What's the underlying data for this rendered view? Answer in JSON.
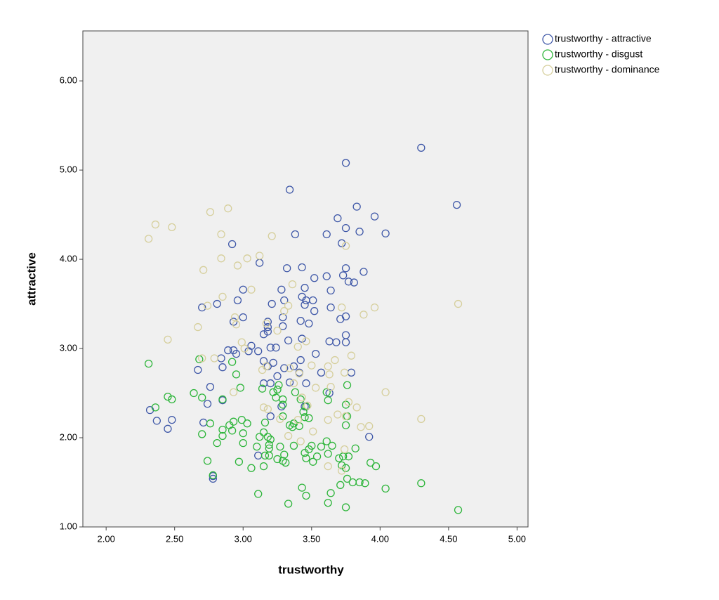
{
  "chart_data": {
    "type": "scatter",
    "x_label": "trustworthy",
    "y_label": "attractive",
    "xlim": [
      1.83,
      5.08
    ],
    "ylim": [
      1.0,
      6.56
    ],
    "xticks": [
      {
        "value": 2,
        "label": "2.00"
      },
      {
        "value": 2.5,
        "label": "2.50"
      },
      {
        "value": 3,
        "label": "3.00"
      },
      {
        "value": 3.5,
        "label": "3.50"
      },
      {
        "value": 4,
        "label": "4.00"
      },
      {
        "value": 4.5,
        "label": "4.50"
      },
      {
        "value": 5,
        "label": "5.00"
      }
    ],
    "yticks": [
      {
        "value": 1,
        "label": "1.00"
      },
      {
        "value": 2,
        "label": "2.00"
      },
      {
        "value": 3,
        "label": "3.00"
      },
      {
        "value": 4,
        "label": "4.00"
      },
      {
        "value": 5,
        "label": "5.00"
      },
      {
        "value": 6,
        "label": "6.00"
      }
    ],
    "grid": false,
    "legend": "outside-top-right",
    "series": [
      {
        "name": "trustworthy - attractive",
        "color": "#3f58a8",
        "x": [
          4.3,
          3.75,
          4.56,
          3.34,
          3.83,
          3.96,
          3.69,
          3.75,
          3.61,
          3.38,
          3.85,
          4.04,
          2.92,
          3.72,
          3.12,
          3.32,
          3.43,
          3.75,
          3.88,
          3.52,
          3.61,
          3.73,
          3.77,
          3.81,
          3.0,
          3.28,
          3.45,
          3.64,
          2.96,
          3.3,
          3.43,
          3.46,
          3.51,
          2.7,
          2.81,
          3.21,
          3.45,
          3.64,
          3.52,
          3.0,
          3.29,
          3.71,
          3.75,
          2.93,
          3.18,
          3.42,
          3.48,
          3.18,
          3.29,
          3.15,
          3.75,
          3.18,
          3.75,
          3.33,
          3.43,
          3.63,
          3.68,
          3.06,
          3.24,
          2.89,
          2.93,
          2.95,
          3.04,
          3.11,
          3.2,
          3.53,
          2.84,
          3.15,
          3.42,
          3.22,
          2.85,
          2.67,
          3.18,
          3.3,
          3.37,
          3.41,
          3.57,
          3.79,
          3.25,
          3.15,
          3.2,
          3.34,
          3.46,
          2.76,
          3.63,
          3.28,
          2.74,
          3.45,
          2.85,
          2.32,
          3.2,
          2.37,
          2.48,
          2.45,
          2.71,
          3.92,
          3.11,
          2.78,
          2.78
        ],
        "y": [
          5.25,
          5.08,
          4.61,
          4.78,
          4.59,
          4.48,
          4.46,
          4.35,
          4.28,
          4.28,
          4.31,
          4.29,
          4.17,
          4.18,
          3.96,
          3.9,
          3.91,
          3.9,
          3.86,
          3.79,
          3.81,
          3.82,
          3.75,
          3.74,
          3.66,
          3.66,
          3.68,
          3.65,
          3.54,
          3.54,
          3.58,
          3.54,
          3.54,
          3.46,
          3.5,
          3.5,
          3.49,
          3.46,
          3.42,
          3.35,
          3.35,
          3.33,
          3.36,
          3.3,
          3.3,
          3.31,
          3.28,
          3.24,
          3.25,
          3.16,
          3.15,
          3.19,
          3.07,
          3.09,
          3.11,
          3.08,
          3.07,
          3.03,
          3.01,
          2.98,
          2.98,
          2.94,
          2.97,
          2.97,
          3.01,
          2.94,
          2.89,
          2.86,
          2.87,
          2.84,
          2.79,
          2.76,
          2.8,
          2.78,
          2.8,
          2.73,
          2.73,
          2.73,
          2.69,
          2.61,
          2.61,
          2.62,
          2.61,
          2.57,
          2.5,
          2.35,
          2.38,
          2.35,
          2.42,
          2.31,
          2.24,
          2.19,
          2.2,
          2.1,
          2.17,
          2.01,
          1.8,
          1.57,
          1.54
        ]
      },
      {
        "name": "trustworthy - disgust",
        "color": "#2db53a",
        "x": [
          2.31,
          2.68,
          2.92,
          2.95,
          2.7,
          2.45,
          2.48,
          2.36,
          2.64,
          2.85,
          2.98,
          3.14,
          3.25,
          3.26,
          3.22,
          3.24,
          3.29,
          3.29,
          3.38,
          3.61,
          3.76,
          3.62,
          3.42,
          3.46,
          3.44,
          3.45,
          3.48,
          3.37,
          3.34,
          3.36,
          3.29,
          3.41,
          3.16,
          2.93,
          2.99,
          3.03,
          2.9,
          2.76,
          2.7,
          2.85,
          2.85,
          2.92,
          3.0,
          3.0,
          3.12,
          3.15,
          3.18,
          3.2,
          3.19,
          3.19,
          3.1,
          2.81,
          3.27,
          3.37,
          3.48,
          3.5,
          3.57,
          3.65,
          3.61,
          3.82,
          3.7,
          3.73,
          3.77,
          3.93,
          3.97,
          3.75,
          3.72,
          3.54,
          3.51,
          3.62,
          3.45,
          3.46,
          3.3,
          3.29,
          3.25,
          3.31,
          3.19,
          3.16,
          3.15,
          3.06,
          2.97,
          2.74,
          2.78,
          3.76,
          3.71,
          3.8,
          3.85,
          3.89,
          4.04,
          4.3,
          3.43,
          3.46,
          3.64,
          3.11,
          3.33,
          3.62,
          3.75,
          4.57,
          3.75,
          3.75,
          3.76
        ],
        "y": [
          2.83,
          2.88,
          2.85,
          2.71,
          2.45,
          2.46,
          2.43,
          2.34,
          2.5,
          2.43,
          2.56,
          2.55,
          2.54,
          2.59,
          2.51,
          2.45,
          2.43,
          2.37,
          2.51,
          2.51,
          2.59,
          2.42,
          2.43,
          2.35,
          2.29,
          2.23,
          2.22,
          2.16,
          2.14,
          2.12,
          2.24,
          2.13,
          2.17,
          2.18,
          2.2,
          2.16,
          2.14,
          2.16,
          2.04,
          2.09,
          2.02,
          2.08,
          2.05,
          1.94,
          2.01,
          2.06,
          2.01,
          1.98,
          1.92,
          1.88,
          1.9,
          1.94,
          1.9,
          1.91,
          1.87,
          1.91,
          1.9,
          1.91,
          1.96,
          1.88,
          1.77,
          1.79,
          1.79,
          1.72,
          1.68,
          1.66,
          1.69,
          1.79,
          1.73,
          1.82,
          1.83,
          1.77,
          1.81,
          1.74,
          1.76,
          1.72,
          1.8,
          1.8,
          1.68,
          1.66,
          1.73,
          1.74,
          1.58,
          1.54,
          1.47,
          1.5,
          1.5,
          1.49,
          1.43,
          1.49,
          1.44,
          1.35,
          1.38,
          1.37,
          1.26,
          1.27,
          1.22,
          1.19,
          2.37,
          2.14,
          2.24
        ]
      },
      {
        "name": "trustworthy - dominance",
        "color": "#d6cf9c",
        "x": [
          2.31,
          2.36,
          2.48,
          2.76,
          2.89,
          2.84,
          3.21,
          3.12,
          3.03,
          2.84,
          2.96,
          2.71,
          3.75,
          3.06,
          3.36,
          2.85,
          3.72,
          3.96,
          4.57,
          2.74,
          3.33,
          2.94,
          3.88,
          3.3,
          3.17,
          2.95,
          2.67,
          3.25,
          2.45,
          3.46,
          2.99,
          3.01,
          3.4,
          3.79,
          3.67,
          2.7,
          2.79,
          3.17,
          3.5,
          3.62,
          3.14,
          3.34,
          3.41,
          3.63,
          3.74,
          3.37,
          3.53,
          3.64,
          2.93,
          4.04,
          3.43,
          3.77,
          3.18,
          3.47,
          3.83,
          3.69,
          3.75,
          3.27,
          3.4,
          3.62,
          4.3,
          3.86,
          3.92,
          3.51,
          3.33,
          3.74,
          3.62,
          3.72,
          3.15,
          3.42
        ],
        "y": [
          4.23,
          4.39,
          4.36,
          4.53,
          4.57,
          4.28,
          4.26,
          4.04,
          4.01,
          4.01,
          3.93,
          3.88,
          4.15,
          3.66,
          3.72,
          3.58,
          3.46,
          3.46,
          3.5,
          3.48,
          3.48,
          3.35,
          3.38,
          3.42,
          3.28,
          3.27,
          3.24,
          3.2,
          3.1,
          3.08,
          3.07,
          3.0,
          3.02,
          2.92,
          2.87,
          2.89,
          2.89,
          2.8,
          2.81,
          2.8,
          2.76,
          2.78,
          2.72,
          2.71,
          2.73,
          2.61,
          2.56,
          2.57,
          2.51,
          2.51,
          2.45,
          2.4,
          2.32,
          2.36,
          2.34,
          2.26,
          2.24,
          2.21,
          2.2,
          2.2,
          2.21,
          2.12,
          2.13,
          2.07,
          2.02,
          1.87,
          1.68,
          1.63,
          2.34,
          1.96
        ]
      }
    ]
  }
}
